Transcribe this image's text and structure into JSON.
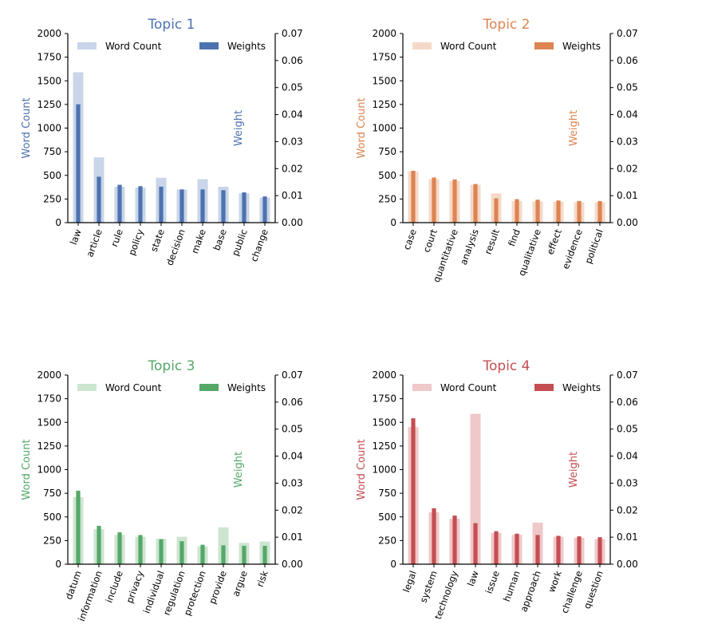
{
  "chart_data": [
    {
      "type": "bar",
      "title": "Topic 1",
      "color": "#4c72b0",
      "light_color": "#c9d5e8",
      "ylabel_left": "Word Count",
      "ylabel_right": "Weight",
      "ylim_left": [
        0,
        2000
      ],
      "ylim_right": [
        0,
        0.07
      ],
      "yticks_left": [
        "0",
        "250",
        "500",
        "750",
        "1000",
        "1250",
        "1500",
        "1750",
        "2000"
      ],
      "yticks_right": [
        "0.00",
        "0.01",
        "0.02",
        "0.03",
        "0.04",
        "0.05",
        "0.06",
        "0.07"
      ],
      "legend": [
        "Word Count",
        "Weights"
      ],
      "categories": [
        "law",
        "article",
        "rule",
        "policy",
        "state",
        "decision",
        "make",
        "base",
        "public",
        "change"
      ],
      "series": [
        {
          "name": "Word Count",
          "axis": "left",
          "values": [
            1590,
            690,
            380,
            370,
            475,
            350,
            460,
            380,
            310,
            265
          ]
        },
        {
          "name": "Weights",
          "axis": "right",
          "values": [
            0.0438,
            0.017,
            0.014,
            0.0135,
            0.0133,
            0.0123,
            0.0123,
            0.012,
            0.0112,
            0.0097
          ]
        }
      ]
    },
    {
      "type": "bar",
      "title": "Topic 2",
      "color": "#dd8452",
      "light_color": "#f5d9c8",
      "ylabel_left": "Word Count",
      "ylabel_right": "Weight",
      "ylim_left": [
        0,
        2000
      ],
      "ylim_right": [
        0,
        0.07
      ],
      "yticks_left": [
        "0",
        "250",
        "500",
        "750",
        "1000",
        "1250",
        "1500",
        "1750",
        "2000"
      ],
      "yticks_right": [
        "0.00",
        "0.01",
        "0.02",
        "0.03",
        "0.04",
        "0.05",
        "0.06",
        "0.07"
      ],
      "legend": [
        "Word Count",
        "Weights"
      ],
      "categories": [
        "case",
        "court",
        "quantitative",
        "analysis",
        "result",
        "find",
        "qualitative",
        "effect",
        "evidence",
        "political"
      ],
      "series": [
        {
          "name": "Word Count",
          "axis": "left",
          "values": [
            540,
            460,
            440,
            400,
            310,
            230,
            225,
            220,
            215,
            215
          ]
        },
        {
          "name": "Weights",
          "axis": "right",
          "values": [
            0.0192,
            0.0167,
            0.016,
            0.0143,
            0.009,
            0.0087,
            0.0085,
            0.0082,
            0.008,
            0.008
          ]
        }
      ]
    },
    {
      "type": "bar",
      "title": "Topic 3",
      "color": "#55a868",
      "light_color": "#cce5d1",
      "ylabel_left": "Word Count",
      "ylabel_right": "Weight",
      "ylim_left": [
        0,
        2000
      ],
      "ylim_right": [
        0,
        0.07
      ],
      "yticks_left": [
        "0",
        "250",
        "500",
        "750",
        "1000",
        "1250",
        "1500",
        "1750",
        "2000"
      ],
      "yticks_right": [
        "0.00",
        "0.01",
        "0.02",
        "0.03",
        "0.04",
        "0.05",
        "0.06",
        "0.07"
      ],
      "legend": [
        "Word Count",
        "Weights"
      ],
      "categories": [
        "datum",
        "information",
        "include",
        "privacy",
        "individual",
        "regulation",
        "protection",
        "provide",
        "argue",
        "risk"
      ],
      "series": [
        {
          "name": "Word Count",
          "axis": "left",
          "values": [
            710,
            370,
            310,
            290,
            270,
            290,
            190,
            390,
            225,
            240
          ]
        },
        {
          "name": "Weights",
          "axis": "right",
          "values": [
            0.0272,
            0.0142,
            0.0118,
            0.0108,
            0.0092,
            0.0085,
            0.0072,
            0.007,
            0.0068,
            0.0068
          ]
        }
      ]
    },
    {
      "type": "bar",
      "title": "Topic 4",
      "color": "#c44e52",
      "light_color": "#efc8c9",
      "ylabel_left": "Word Count",
      "ylabel_right": "Weight",
      "ylim_left": [
        0,
        2000
      ],
      "ylim_right": [
        0,
        0.07
      ],
      "yticks_left": [
        "0",
        "250",
        "500",
        "750",
        "1000",
        "1250",
        "1500",
        "1750",
        "2000"
      ],
      "yticks_right": [
        "0.00",
        "0.01",
        "0.02",
        "0.03",
        "0.04",
        "0.05",
        "0.06",
        "0.07"
      ],
      "legend": [
        "Word Count",
        "Weights"
      ],
      "categories": [
        "legal",
        "system",
        "technology",
        "law",
        "issue",
        "human",
        "approach",
        "work",
        "challenge",
        "question"
      ],
      "series": [
        {
          "name": "Word Count",
          "axis": "left",
          "values": [
            1450,
            550,
            480,
            1590,
            330,
            310,
            440,
            290,
            280,
            265
          ]
        },
        {
          "name": "Weights",
          "axis": "right",
          "values": [
            0.054,
            0.0207,
            0.018,
            0.0152,
            0.0122,
            0.0113,
            0.0108,
            0.0105,
            0.0103,
            0.01
          ]
        }
      ]
    }
  ]
}
